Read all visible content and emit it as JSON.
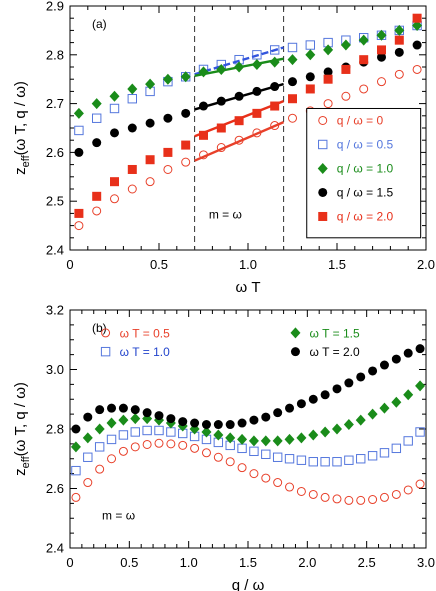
{
  "chart_data": [
    {
      "type": "scatter",
      "panel_label": "(a)",
      "xlabel": "ω T",
      "ylabel": "z_eff(ω T, q / ω)",
      "xlim": [
        0,
        2.0
      ],
      "ylim": [
        2.4,
        2.9
      ],
      "xticks": [
        "0",
        "0.5",
        "1.0",
        "1.5",
        "2.0"
      ],
      "yticks": [
        "2.4",
        "2.5",
        "2.6",
        "2.7",
        "2.8",
        "2.9"
      ],
      "annotation": "m = ω",
      "vlines": [
        0.7,
        1.2
      ],
      "legend_position": "bottom-right",
      "series": [
        {
          "name": "q / ω = 0",
          "marker": "circle-open",
          "color": "#e8402a",
          "x": [
            0.05,
            0.15,
            0.25,
            0.35,
            0.45,
            0.55,
            0.65,
            0.75,
            0.85,
            0.95,
            1.05,
            1.15,
            1.25,
            1.35,
            1.45,
            1.55,
            1.65,
            1.75,
            1.85,
            1.95
          ],
          "y": [
            2.45,
            2.48,
            2.505,
            2.525,
            2.54,
            2.565,
            2.58,
            2.595,
            2.61,
            2.625,
            2.64,
            2.655,
            2.67,
            2.685,
            2.7,
            2.715,
            2.73,
            2.745,
            2.76,
            2.77
          ],
          "fit": {
            "x": [
              0.7,
              1.2
            ],
            "y": [
              2.583,
              2.662
            ],
            "color": "#e8402a"
          }
        },
        {
          "name": "q / ω = 0.5",
          "marker": "square-open",
          "color": "#5577dd",
          "x": [
            0.05,
            0.15,
            0.25,
            0.35,
            0.45,
            0.55,
            0.65,
            0.75,
            0.85,
            0.95,
            1.05,
            1.15,
            1.25,
            1.35,
            1.45,
            1.55,
            1.65,
            1.75,
            1.85,
            1.95
          ],
          "y": [
            2.645,
            2.67,
            2.69,
            2.71,
            2.725,
            2.745,
            2.755,
            2.77,
            2.78,
            2.79,
            2.8,
            2.81,
            2.815,
            2.82,
            2.825,
            2.83,
            2.835,
            2.84,
            2.85,
            2.86
          ],
          "fit": {
            "x": [
              0.7,
              1.2
            ],
            "y": [
              2.76,
              2.815
            ],
            "color": "#3355dd"
          }
        },
        {
          "name": "q / ω = 1.0",
          "marker": "diamond-filled",
          "color": "#1a8c1a",
          "x": [
            0.05,
            0.15,
            0.25,
            0.35,
            0.45,
            0.55,
            0.65,
            0.75,
            0.85,
            0.95,
            1.05,
            1.15,
            1.25,
            1.35,
            1.45,
            1.55,
            1.65,
            1.75,
            1.85,
            1.95
          ],
          "y": [
            2.68,
            2.7,
            2.715,
            2.73,
            2.74,
            2.75,
            2.755,
            2.765,
            2.77,
            2.775,
            2.78,
            2.785,
            2.79,
            2.8,
            2.81,
            2.82,
            2.83,
            2.84,
            2.85,
            2.86
          ],
          "fit": {
            "x": [
              0.7,
              1.2
            ],
            "y": [
              2.757,
              2.792
            ],
            "color": "#1a8c1a"
          }
        },
        {
          "name": "q / ω = 1.5",
          "marker": "circle-filled",
          "color": "#000000",
          "x": [
            0.05,
            0.15,
            0.25,
            0.35,
            0.45,
            0.55,
            0.65,
            0.75,
            0.85,
            0.95,
            1.05,
            1.15,
            1.25,
            1.35,
            1.45,
            1.55,
            1.65,
            1.75,
            1.85,
            1.95
          ],
          "y": [
            2.6,
            2.62,
            2.64,
            2.65,
            2.66,
            2.67,
            2.68,
            2.695,
            2.705,
            2.715,
            2.725,
            2.735,
            2.745,
            2.755,
            2.765,
            2.775,
            2.785,
            2.795,
            2.805,
            2.82
          ],
          "fit": {
            "x": [
              0.7,
              1.2
            ],
            "y": [
              2.688,
              2.74
            ],
            "color": "#000000"
          }
        },
        {
          "name": "q / ω = 2.0",
          "marker": "square-filled",
          "color": "#e8301a",
          "x": [
            0.05,
            0.15,
            0.25,
            0.35,
            0.45,
            0.55,
            0.65,
            0.75,
            0.85,
            0.95,
            1.05,
            1.15,
            1.25,
            1.35,
            1.45,
            1.55,
            1.65,
            1.75,
            1.85,
            1.95
          ],
          "y": [
            2.475,
            2.51,
            2.54,
            2.565,
            2.585,
            2.6,
            2.615,
            2.635,
            2.65,
            2.665,
            2.68,
            2.695,
            2.71,
            2.73,
            2.75,
            2.77,
            2.79,
            2.81,
            2.83,
            2.875
          ],
          "fit": {
            "x": [
              0.7,
              1.2
            ],
            "y": [
              2.633,
              2.705
            ],
            "color": "#e8301a"
          }
        }
      ]
    },
    {
      "type": "scatter",
      "panel_label": "(b)",
      "xlabel": "q / ω",
      "ylabel": "z_eff(ω T, q / ω)",
      "xlim": [
        0,
        3.0
      ],
      "ylim": [
        2.4,
        3.2
      ],
      "xticks": [
        "0",
        "0.5",
        "1.0",
        "1.5",
        "2.0",
        "2.5",
        "3.0"
      ],
      "yticks": [
        "2.4",
        "2.6",
        "2.8",
        "3.0",
        "3.2"
      ],
      "annotation": "m = ω",
      "legend_position": "top",
      "series": [
        {
          "name": "ω T = 0.5",
          "marker": "circle-open",
          "color": "#e8402a",
          "x": [
            0.05,
            0.15,
            0.25,
            0.35,
            0.45,
            0.55,
            0.65,
            0.75,
            0.85,
            0.95,
            1.05,
            1.15,
            1.25,
            1.35,
            1.45,
            1.55,
            1.65,
            1.75,
            1.85,
            1.95,
            2.05,
            2.15,
            2.25,
            2.35,
            2.45,
            2.55,
            2.65,
            2.75,
            2.85,
            2.95
          ],
          "y": [
            2.57,
            2.62,
            2.665,
            2.7,
            2.725,
            2.74,
            2.748,
            2.752,
            2.75,
            2.745,
            2.735,
            2.72,
            2.705,
            2.69,
            2.67,
            2.65,
            2.635,
            2.62,
            2.605,
            2.59,
            2.58,
            2.57,
            2.565,
            2.56,
            2.56,
            2.563,
            2.57,
            2.58,
            2.595,
            2.615
          ]
        },
        {
          "name": "ω T = 1.0",
          "marker": "square-open",
          "color": "#5577dd",
          "x": [
            0.05,
            0.15,
            0.25,
            0.35,
            0.45,
            0.55,
            0.65,
            0.75,
            0.85,
            0.95,
            1.05,
            1.15,
            1.25,
            1.35,
            1.45,
            1.55,
            1.65,
            1.75,
            1.85,
            1.95,
            2.05,
            2.15,
            2.25,
            2.35,
            2.45,
            2.55,
            2.65,
            2.75,
            2.85,
            2.95
          ],
          "y": [
            2.66,
            2.705,
            2.74,
            2.765,
            2.78,
            2.79,
            2.795,
            2.795,
            2.79,
            2.785,
            2.775,
            2.765,
            2.755,
            2.745,
            2.735,
            2.725,
            2.715,
            2.705,
            2.7,
            2.695,
            2.69,
            2.69,
            2.69,
            2.695,
            2.7,
            2.71,
            2.72,
            2.735,
            2.76,
            2.79
          ]
        },
        {
          "name": "ω T = 1.5",
          "marker": "diamond-filled",
          "color": "#1a8c1a",
          "x": [
            0.05,
            0.15,
            0.25,
            0.35,
            0.45,
            0.55,
            0.65,
            0.75,
            0.85,
            0.95,
            1.05,
            1.15,
            1.25,
            1.35,
            1.45,
            1.55,
            1.65,
            1.75,
            1.85,
            1.95,
            2.05,
            2.15,
            2.25,
            2.35,
            2.45,
            2.55,
            2.65,
            2.75,
            2.85,
            2.95
          ],
          "y": [
            2.74,
            2.77,
            2.8,
            2.82,
            2.83,
            2.835,
            2.835,
            2.83,
            2.82,
            2.81,
            2.8,
            2.79,
            2.78,
            2.77,
            2.765,
            2.76,
            2.76,
            2.76,
            2.765,
            2.77,
            2.78,
            2.79,
            2.8,
            2.815,
            2.83,
            2.85,
            2.87,
            2.89,
            2.915,
            2.945
          ]
        },
        {
          "name": "ω T = 2.0",
          "marker": "circle-filled",
          "color": "#000000",
          "x": [
            0.05,
            0.15,
            0.25,
            0.35,
            0.45,
            0.55,
            0.65,
            0.75,
            0.85,
            0.95,
            1.05,
            1.15,
            1.25,
            1.35,
            1.45,
            1.55,
            1.65,
            1.75,
            1.85,
            1.95,
            2.05,
            2.15,
            2.25,
            2.35,
            2.45,
            2.55,
            2.65,
            2.75,
            2.85,
            2.95
          ],
          "y": [
            2.8,
            2.84,
            2.865,
            2.87,
            2.87,
            2.865,
            2.855,
            2.845,
            2.835,
            2.825,
            2.82,
            2.815,
            2.815,
            2.815,
            2.82,
            2.83,
            2.84,
            2.855,
            2.87,
            2.885,
            2.9,
            2.915,
            2.935,
            2.955,
            2.975,
            2.995,
            3.015,
            3.035,
            3.055,
            3.07
          ]
        }
      ]
    }
  ]
}
